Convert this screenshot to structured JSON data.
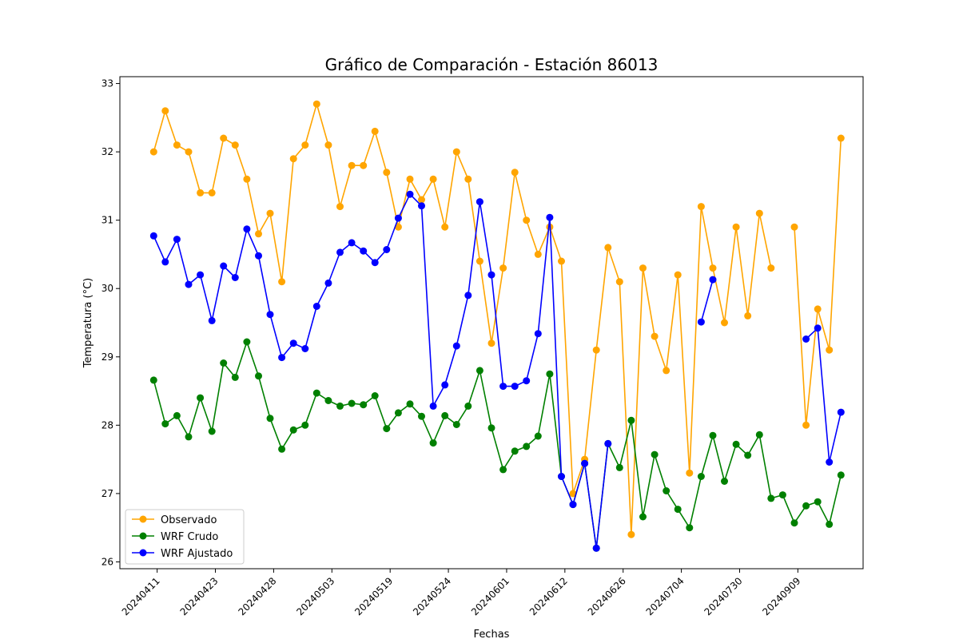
{
  "chart_data": {
    "type": "line",
    "title": "Gráfico de Comparación - Estación 86013",
    "xlabel": "Fechas",
    "ylabel": "Temperatura (°C)",
    "ylim": [
      25.9,
      33.1
    ],
    "yticks": [
      26,
      27,
      28,
      29,
      30,
      31,
      32,
      33
    ],
    "xlim": [
      -2.9,
      60.9
    ],
    "xticks": [
      {
        "pos": 0.3,
        "label": "20240411"
      },
      {
        "pos": 5.3,
        "label": "20240423"
      },
      {
        "pos": 10.3,
        "label": "20240428"
      },
      {
        "pos": 15.3,
        "label": "20240503"
      },
      {
        "pos": 20.3,
        "label": "20240519"
      },
      {
        "pos": 25.3,
        "label": "20240524"
      },
      {
        "pos": 30.3,
        "label": "20240601"
      },
      {
        "pos": 35.3,
        "label": "20240612"
      },
      {
        "pos": 40.3,
        "label": "20240626"
      },
      {
        "pos": 45.3,
        "label": "20240704"
      },
      {
        "pos": 50.3,
        "label": "20240730"
      },
      {
        "pos": 55.3,
        "label": "20240909"
      }
    ],
    "legend_position": "lower-left",
    "grid": false,
    "series": [
      {
        "name": "Observado",
        "color": "#ffa500",
        "values": [
          32.0,
          32.6,
          32.1,
          32.0,
          31.4,
          31.4,
          32.2,
          32.1,
          31.6,
          30.8,
          31.1,
          30.1,
          31.9,
          32.1,
          32.7,
          32.1,
          31.2,
          31.8,
          31.8,
          32.3,
          31.7,
          30.9,
          31.6,
          31.3,
          31.6,
          30.9,
          32.0,
          31.6,
          30.4,
          29.2,
          30.3,
          31.7,
          31.0,
          30.5,
          30.9,
          30.4,
          27.0,
          27.5,
          29.1,
          30.6,
          30.1,
          26.4,
          30.3,
          29.3,
          28.8,
          30.2,
          27.3,
          31.2,
          30.3,
          29.5,
          30.9,
          29.6,
          31.1,
          30.3,
          null,
          30.9,
          28.0,
          29.7,
          29.1,
          32.2
        ]
      },
      {
        "name": "WRF Crudo",
        "color": "#008000",
        "values": [
          28.66,
          28.02,
          28.14,
          27.83,
          28.4,
          27.91,
          28.91,
          28.7,
          29.22,
          28.72,
          28.1,
          27.65,
          27.93,
          28.0,
          28.47,
          28.36,
          28.28,
          28.32,
          28.3,
          28.43,
          27.95,
          28.18,
          28.31,
          28.13,
          27.74,
          28.14,
          28.01,
          28.28,
          28.8,
          27.96,
          27.35,
          27.62,
          27.69,
          27.84,
          28.75,
          27.25,
          26.84,
          27.44,
          26.2,
          27.73,
          27.38,
          28.07,
          26.66,
          27.57,
          27.04,
          26.77,
          26.5,
          27.25,
          27.85,
          27.18,
          27.72,
          27.56,
          27.86,
          26.93,
          26.98,
          26.57,
          26.82,
          26.88,
          26.55,
          27.27
        ]
      },
      {
        "name": "WRF Ajustado",
        "color": "#0000ff",
        "values": [
          30.77,
          30.39,
          30.72,
          30.06,
          30.2,
          29.53,
          30.33,
          30.16,
          30.87,
          30.48,
          29.62,
          28.99,
          29.2,
          29.12,
          29.74,
          30.08,
          30.53,
          30.67,
          30.55,
          30.38,
          30.57,
          31.03,
          31.38,
          31.21,
          28.28,
          28.59,
          29.16,
          29.9,
          31.27,
          30.2,
          28.57,
          28.57,
          28.65,
          29.34,
          31.04,
          27.25,
          26.84,
          27.44,
          26.2,
          27.73,
          null,
          null,
          null,
          null,
          null,
          null,
          null,
          29.51,
          30.13,
          null,
          null,
          null,
          null,
          null,
          null,
          null,
          29.26,
          29.42,
          27.46,
          28.19
        ]
      }
    ]
  }
}
